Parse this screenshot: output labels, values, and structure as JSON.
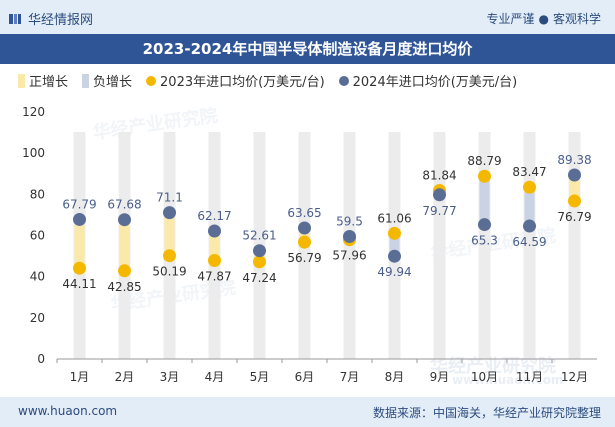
{
  "header": {
    "brand": "华经情报网",
    "slogan_left": "专业严谨",
    "slogan_right": "客观科学"
  },
  "watermark": {
    "text": "华经产业研究院",
    "site": "www.huaon.com"
  },
  "footer": {
    "url": "www.huaon.com",
    "source": "数据来源：中国海关，华经产业研究院整理"
  },
  "colors": {
    "positive": "#fbe9a9",
    "negative": "#c9d3e3",
    "y2023": "#f5b800",
    "y2024": "#5a6e95",
    "bg_bar": "#ececec",
    "title_bg": "#2f5597"
  },
  "chart_data": {
    "type": "line",
    "title": "2023-2024年中国半导体制造设备月度进口均价",
    "legend": [
      "正增长",
      "负增长",
      "2023年进口均价(万美元/台)",
      "2024年进口均价(万美元/台)"
    ],
    "categories": [
      "1月",
      "2月",
      "3月",
      "4月",
      "5月",
      "6月",
      "7月",
      "8月",
      "9月",
      "10月",
      "11月",
      "12月"
    ],
    "series": [
      {
        "name": "2023年进口均价(万美元/台)",
        "values": [
          44.11,
          42.85,
          50.19,
          47.87,
          47.24,
          56.79,
          57.96,
          61.06,
          81.84,
          88.79,
          83.47,
          76.79
        ]
      },
      {
        "name": "2024年进口均价(万美元/台)",
        "values": [
          67.79,
          67.68,
          71.1,
          62.17,
          52.61,
          63.65,
          59.5,
          49.94,
          79.77,
          65.3,
          64.59,
          89.38
        ]
      }
    ],
    "ylim": [
      0,
      120
    ],
    "yticks": [
      0,
      20,
      40,
      60,
      80,
      100,
      120
    ],
    "xlabel": "",
    "ylabel": ""
  }
}
